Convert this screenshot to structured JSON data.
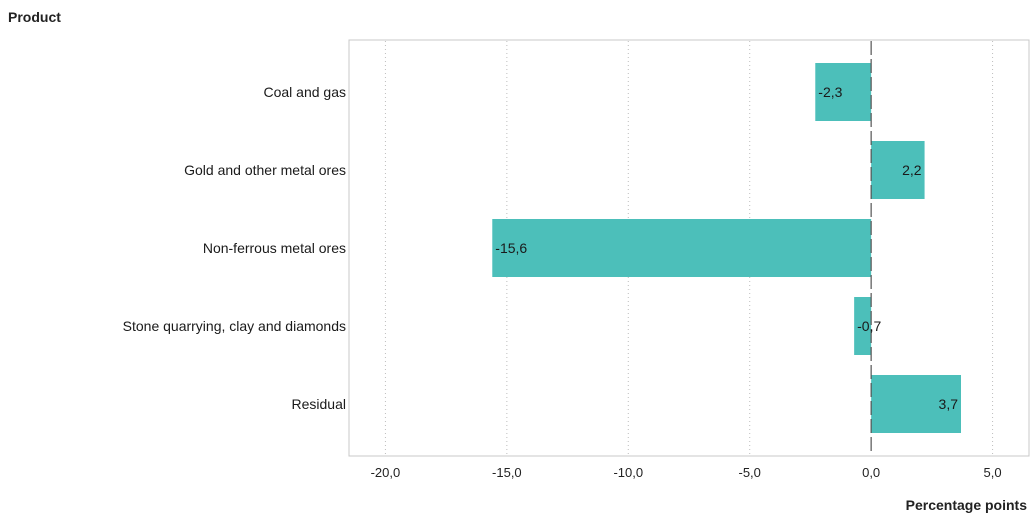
{
  "chart_data": {
    "type": "bar",
    "orientation": "horizontal",
    "title": "",
    "ylabel": "Product",
    "xlabel": "Percentage points",
    "categories": [
      "Coal and gas",
      "Gold and other metal ores",
      "Non-ferrous metal ores",
      "Stone quarrying, clay and diamonds",
      "Residual"
    ],
    "values": [
      -2.3,
      2.2,
      -15.6,
      -0.7,
      3.7
    ],
    "value_labels": [
      "-2,3",
      "2,2",
      "-15,6",
      "-0,7",
      "3,7"
    ],
    "xlim": [
      -21.5,
      6.5
    ],
    "xticks": [
      -20,
      -15,
      -10,
      -5,
      0,
      5
    ],
    "xtick_labels": [
      "-20,0",
      "-15,0",
      "-10,0",
      "-5,0",
      "0,0",
      "5,0"
    ],
    "grid": "vertical dotted",
    "legend": "none",
    "bar_color": "#4cbfba",
    "zero_line_style": "dashed"
  }
}
